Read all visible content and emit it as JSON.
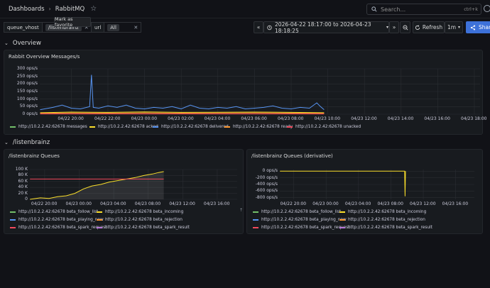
{
  "breadcrumb": {
    "root": "Dashboards",
    "current": "RabbitMQ"
  },
  "search": {
    "placeholder": "Search...",
    "shortcut": "ctrl+k"
  },
  "tooltip": "Mark as favorite",
  "variables": [
    {
      "label": "queue_vhost",
      "value": "/listenbrainz"
    },
    {
      "label": "url",
      "value": "All"
    }
  ],
  "time": {
    "range": "2026-04-22 18:17:00 to 2026-04-23 18:18:25",
    "refresh": "Refresh",
    "interval": "1m"
  },
  "share": "Share",
  "rows": [
    {
      "title": "Overview"
    },
    {
      "title": "/listenbrainz"
    }
  ],
  "panels": {
    "overview": {
      "title": "Rabbit Overview Messages/s",
      "legend": [
        {
          "label": "http://10.2.2.42:62678 messages",
          "color": "#73bf69"
        },
        {
          "label": "http://10.2.2.42:62678 acked",
          "color": "#fade2a"
        },
        {
          "label": "http://10.2.2.42:62678 delivered",
          "color": "#5794f2"
        },
        {
          "label": "http://10.2.2.42:62678 ready",
          "color": "#ff9830"
        },
        {
          "label": "http://10.2.2.42:62678 unacked",
          "color": "#f2495c"
        }
      ]
    },
    "queues": {
      "title": "/listenbrainz Queues",
      "legend": [
        {
          "label": "http://10.2.2.42:62678 beta_follow_list",
          "color": "#73bf69"
        },
        {
          "label": "http://10.2.2.42:62678 beta_incoming",
          "color": "#fade2a"
        },
        {
          "label": "http://10.2.2.42:62678 beta_playing_now",
          "color": "#5794f2"
        },
        {
          "label": "http://10.2.2.42:62678 beta_rejection",
          "color": "#ff9830"
        },
        {
          "label": "http://10.2.2.42:62678 beta_spark_request",
          "color": "#f2495c"
        },
        {
          "label": "http://10.2.2.42:62678 beta_spark_result",
          "color": "#b877d9"
        }
      ]
    },
    "derivative": {
      "title": "/listenbrainz Queues (derivative)",
      "legend": [
        {
          "label": "http://10.2.2.42:62678 beta_follow_list",
          "color": "#73bf69"
        },
        {
          "label": "http://10.2.2.42:62678 beta_incoming",
          "color": "#fade2a"
        },
        {
          "label": "http://10.2.2.42:62678 beta_playing_now",
          "color": "#5794f2"
        },
        {
          "label": "http://10.2.2.42:62678 beta_rejection",
          "color": "#ff9830"
        },
        {
          "label": "http://10.2.2.42:62678 beta_spark_request",
          "color": "#f2495c"
        },
        {
          "label": "http://10.2.2.42:62678 beta_spark_result",
          "color": "#b877d9"
        }
      ]
    }
  },
  "chart_data": [
    {
      "type": "line",
      "title": "Rabbit Overview Messages/s",
      "y_ticks": [
        "0 ops/s",
        "50 ops/s",
        "100 ops/s",
        "150 ops/s",
        "200 ops/s",
        "250 ops/s",
        "300 ops/s"
      ],
      "ylim": [
        0,
        300
      ],
      "x_ticks": [
        "04/22 20:00",
        "04/22 22:00",
        "04/23 00:00",
        "04/23 02:00",
        "04/23 04:00",
        "04/23 06:00",
        "04/23 08:00",
        "04/23 10:00",
        "04/23 12:00",
        "04/23 14:00",
        "04/23 16:00",
        "04/23 18:00"
      ],
      "x_hours": [
        20,
        22,
        24,
        26,
        28,
        30,
        32,
        34,
        36,
        38,
        40,
        42
      ],
      "xlim_hours": [
        18.28,
        42.31
      ],
      "series": [
        {
          "name": "http://10.2.2.42:62678 delivered",
          "color": "#5794f2",
          "x_hours": [
            18.3,
            19.0,
            19.5,
            20.0,
            20.5,
            21.0,
            21.1,
            21.2,
            21.5,
            22.0,
            22.5,
            23.0,
            23.5,
            24.0,
            24.5,
            25.0,
            25.5,
            26.0,
            26.5,
            27.0,
            27.5,
            28.0,
            28.5,
            29.0,
            29.5,
            30.0,
            30.5,
            31.0,
            31.5,
            32.0,
            32.5,
            33.0,
            33.4,
            33.6,
            33.8
          ],
          "values": [
            30,
            45,
            60,
            40,
            35,
            50,
            260,
            45,
            40,
            55,
            45,
            60,
            40,
            35,
            45,
            40,
            50,
            35,
            60,
            40,
            35,
            45,
            40,
            50,
            35,
            40,
            45,
            55,
            40,
            35,
            45,
            40,
            75,
            50,
            30
          ]
        },
        {
          "name": "http://10.2.2.42:62678 acked",
          "color": "#fade2a",
          "x_hours": [
            18.3,
            20.0,
            22.0,
            24.0,
            26.0,
            28.0,
            30.0,
            32.0,
            33.8
          ],
          "values": [
            10,
            14,
            12,
            15,
            12,
            13,
            14,
            12,
            10
          ]
        },
        {
          "name": "http://10.2.2.42:62678 ready",
          "color": "#ff9830",
          "x_hours": [
            18.3,
            20.0,
            22.0,
            24.0,
            26.0,
            28.0,
            30.0,
            32.0,
            33.8
          ],
          "values": [
            6,
            8,
            7,
            9,
            7,
            8,
            9,
            7,
            6
          ]
        },
        {
          "name": "http://10.2.2.42:62678 unacked",
          "color": "#f2495c",
          "x_hours": [
            18.3,
            33.8
          ],
          "values": [
            2,
            2
          ]
        }
      ]
    },
    {
      "type": "area",
      "title": "/listenbrainz Queues",
      "y_ticks": [
        "0",
        "20 K",
        "40 K",
        "60 K",
        "80 K",
        "100 K"
      ],
      "ylim": [
        0,
        100000
      ],
      "x_ticks": [
        "04/22 20:00",
        "04/23 00:00",
        "04/23 04:00",
        "04/23 08:00",
        "04/23 12:00",
        "04/23 16:00"
      ],
      "x_hours": [
        20,
        24,
        28,
        32,
        36,
        40
      ],
      "xlim_hours": [
        18.28,
        42.31
      ],
      "series": [
        {
          "name": "http://10.2.2.42:62678 beta_incoming",
          "color": "#fade2a",
          "x_hours": [
            18.3,
            19.5,
            20.5,
            21.5,
            22.5,
            23.5,
            24.5,
            25.5,
            26.5,
            27.5,
            28.5,
            29.5,
            30.5,
            31.5,
            32.5,
            33.2,
            33.8
          ],
          "values": [
            0,
            5000,
            3000,
            9000,
            12000,
            20000,
            35000,
            45000,
            50000,
            58000,
            63000,
            68000,
            73000,
            80000,
            85000,
            90000,
            93000
          ]
        },
        {
          "name": "http://10.2.2.42:62678 beta_spark_request",
          "color": "#f2495c",
          "x_hours": [
            18.3,
            33.8
          ],
          "values": [
            68000,
            68000
          ]
        }
      ]
    },
    {
      "type": "line",
      "title": "/listenbrainz Queues (derivative)",
      "y_ticks": [
        "-800 ops/s",
        "-600 ops/s",
        "-400 ops/s",
        "-200 ops/s",
        "0 ops/s"
      ],
      "ylim": [
        -850,
        50
      ],
      "x_ticks": [
        "04/22 20:00",
        "04/23 00:00",
        "04/23 04:00",
        "04/23 08:00",
        "04/23 12:00",
        "04/23 16:00"
      ],
      "x_hours": [
        20,
        24,
        28,
        32,
        36,
        40
      ],
      "xlim_hours": [
        18.28,
        42.31
      ],
      "series": [
        {
          "name": "http://10.2.2.42:62678 beta_incoming",
          "color": "#fade2a",
          "x_hours": [
            18.3,
            22.0,
            26.0,
            30.0,
            33.7,
            33.75,
            33.8
          ],
          "values": [
            0,
            3,
            1,
            2,
            0,
            -760,
            0
          ]
        }
      ]
    }
  ]
}
